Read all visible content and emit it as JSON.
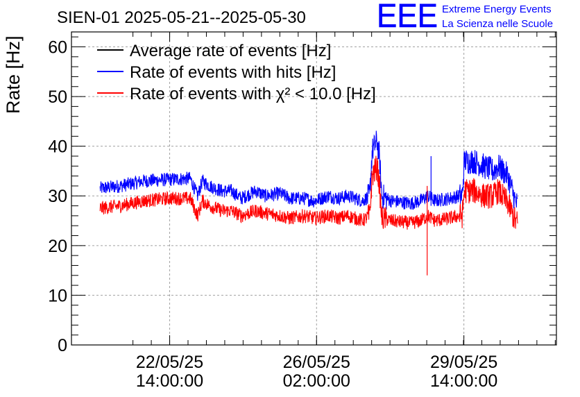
{
  "chart_data": {
    "type": "line",
    "title": "SIEN-01 2025-05-21--2025-05-30",
    "ylabel": "Rate [Hz]",
    "xlabel": "",
    "ylim": [
      0,
      63
    ],
    "yticks": [
      0,
      10,
      20,
      30,
      40,
      50,
      60
    ],
    "xlim": [
      0,
      1
    ],
    "xticks": [
      {
        "pos": 0.2025,
        "line1": "22/05/25",
        "line2": "14:00:00"
      },
      {
        "pos": 0.5054,
        "line1": "26/05/25",
        "line2": "02:00:00"
      },
      {
        "pos": 0.8092,
        "line1": "29/05/25",
        "line2": "14:00:00"
      }
    ],
    "grid": true,
    "legend_position": "top-left",
    "series": [
      {
        "name": "Average rate of events [Hz]",
        "color": "#000000",
        "x": [],
        "y": []
      },
      {
        "name": "Rate of events with hits [Hz]",
        "color": "#0000ff",
        "x": [
          0.059,
          0.1,
          0.15,
          0.2,
          0.245,
          0.26,
          0.27,
          0.285,
          0.31,
          0.33,
          0.35,
          0.38,
          0.4,
          0.43,
          0.45,
          0.48,
          0.5,
          0.53,
          0.55,
          0.57,
          0.6,
          0.615,
          0.62,
          0.625,
          0.63,
          0.635,
          0.64,
          0.66,
          0.7,
          0.72,
          0.735,
          0.75,
          0.78,
          0.8,
          0.806,
          0.81,
          0.83,
          0.85,
          0.87,
          0.88,
          0.9,
          0.915,
          0.92
        ],
        "y": [
          31.5,
          32,
          33,
          33.3,
          33.5,
          30,
          33,
          32,
          31,
          31,
          29.5,
          31,
          30,
          30.5,
          29.5,
          29.5,
          29,
          30,
          29.5,
          30,
          29,
          30,
          39,
          40,
          41,
          38,
          30,
          29,
          28.5,
          29,
          30,
          29,
          29.5,
          30,
          30,
          37,
          37,
          36,
          35,
          36,
          34,
          29,
          28
        ]
      },
      {
        "name": "Rate of events with χ² < 10.0 [Hz]",
        "color": "#ff0000",
        "x": [
          0.059,
          0.1,
          0.15,
          0.2,
          0.245,
          0.26,
          0.27,
          0.285,
          0.31,
          0.33,
          0.35,
          0.38,
          0.4,
          0.43,
          0.45,
          0.48,
          0.5,
          0.53,
          0.55,
          0.57,
          0.6,
          0.615,
          0.62,
          0.625,
          0.63,
          0.635,
          0.64,
          0.66,
          0.7,
          0.72,
          0.735,
          0.75,
          0.78,
          0.8,
          0.806,
          0.81,
          0.83,
          0.85,
          0.87,
          0.88,
          0.9,
          0.915,
          0.92
        ],
        "y": [
          27.5,
          28,
          29,
          29.5,
          29.5,
          26,
          29,
          28,
          27,
          27,
          26,
          27,
          26.5,
          26,
          25.5,
          26,
          25.5,
          26,
          25.5,
          26,
          25,
          26,
          34,
          35,
          36,
          32,
          25.5,
          25,
          24.5,
          25,
          26,
          25,
          25.5,
          26,
          26,
          31,
          31,
          30,
          30,
          31,
          28.5,
          25,
          24.5
        ]
      }
    ],
    "annotations": {
      "logo_text": "EEE",
      "logo_line1": "Extreme Energy Events",
      "logo_line2": "La Scienza nelle Scuole"
    },
    "colors": {
      "logo": "#0000ff",
      "grid": "#a0a0a0",
      "axis": "#000000"
    }
  }
}
